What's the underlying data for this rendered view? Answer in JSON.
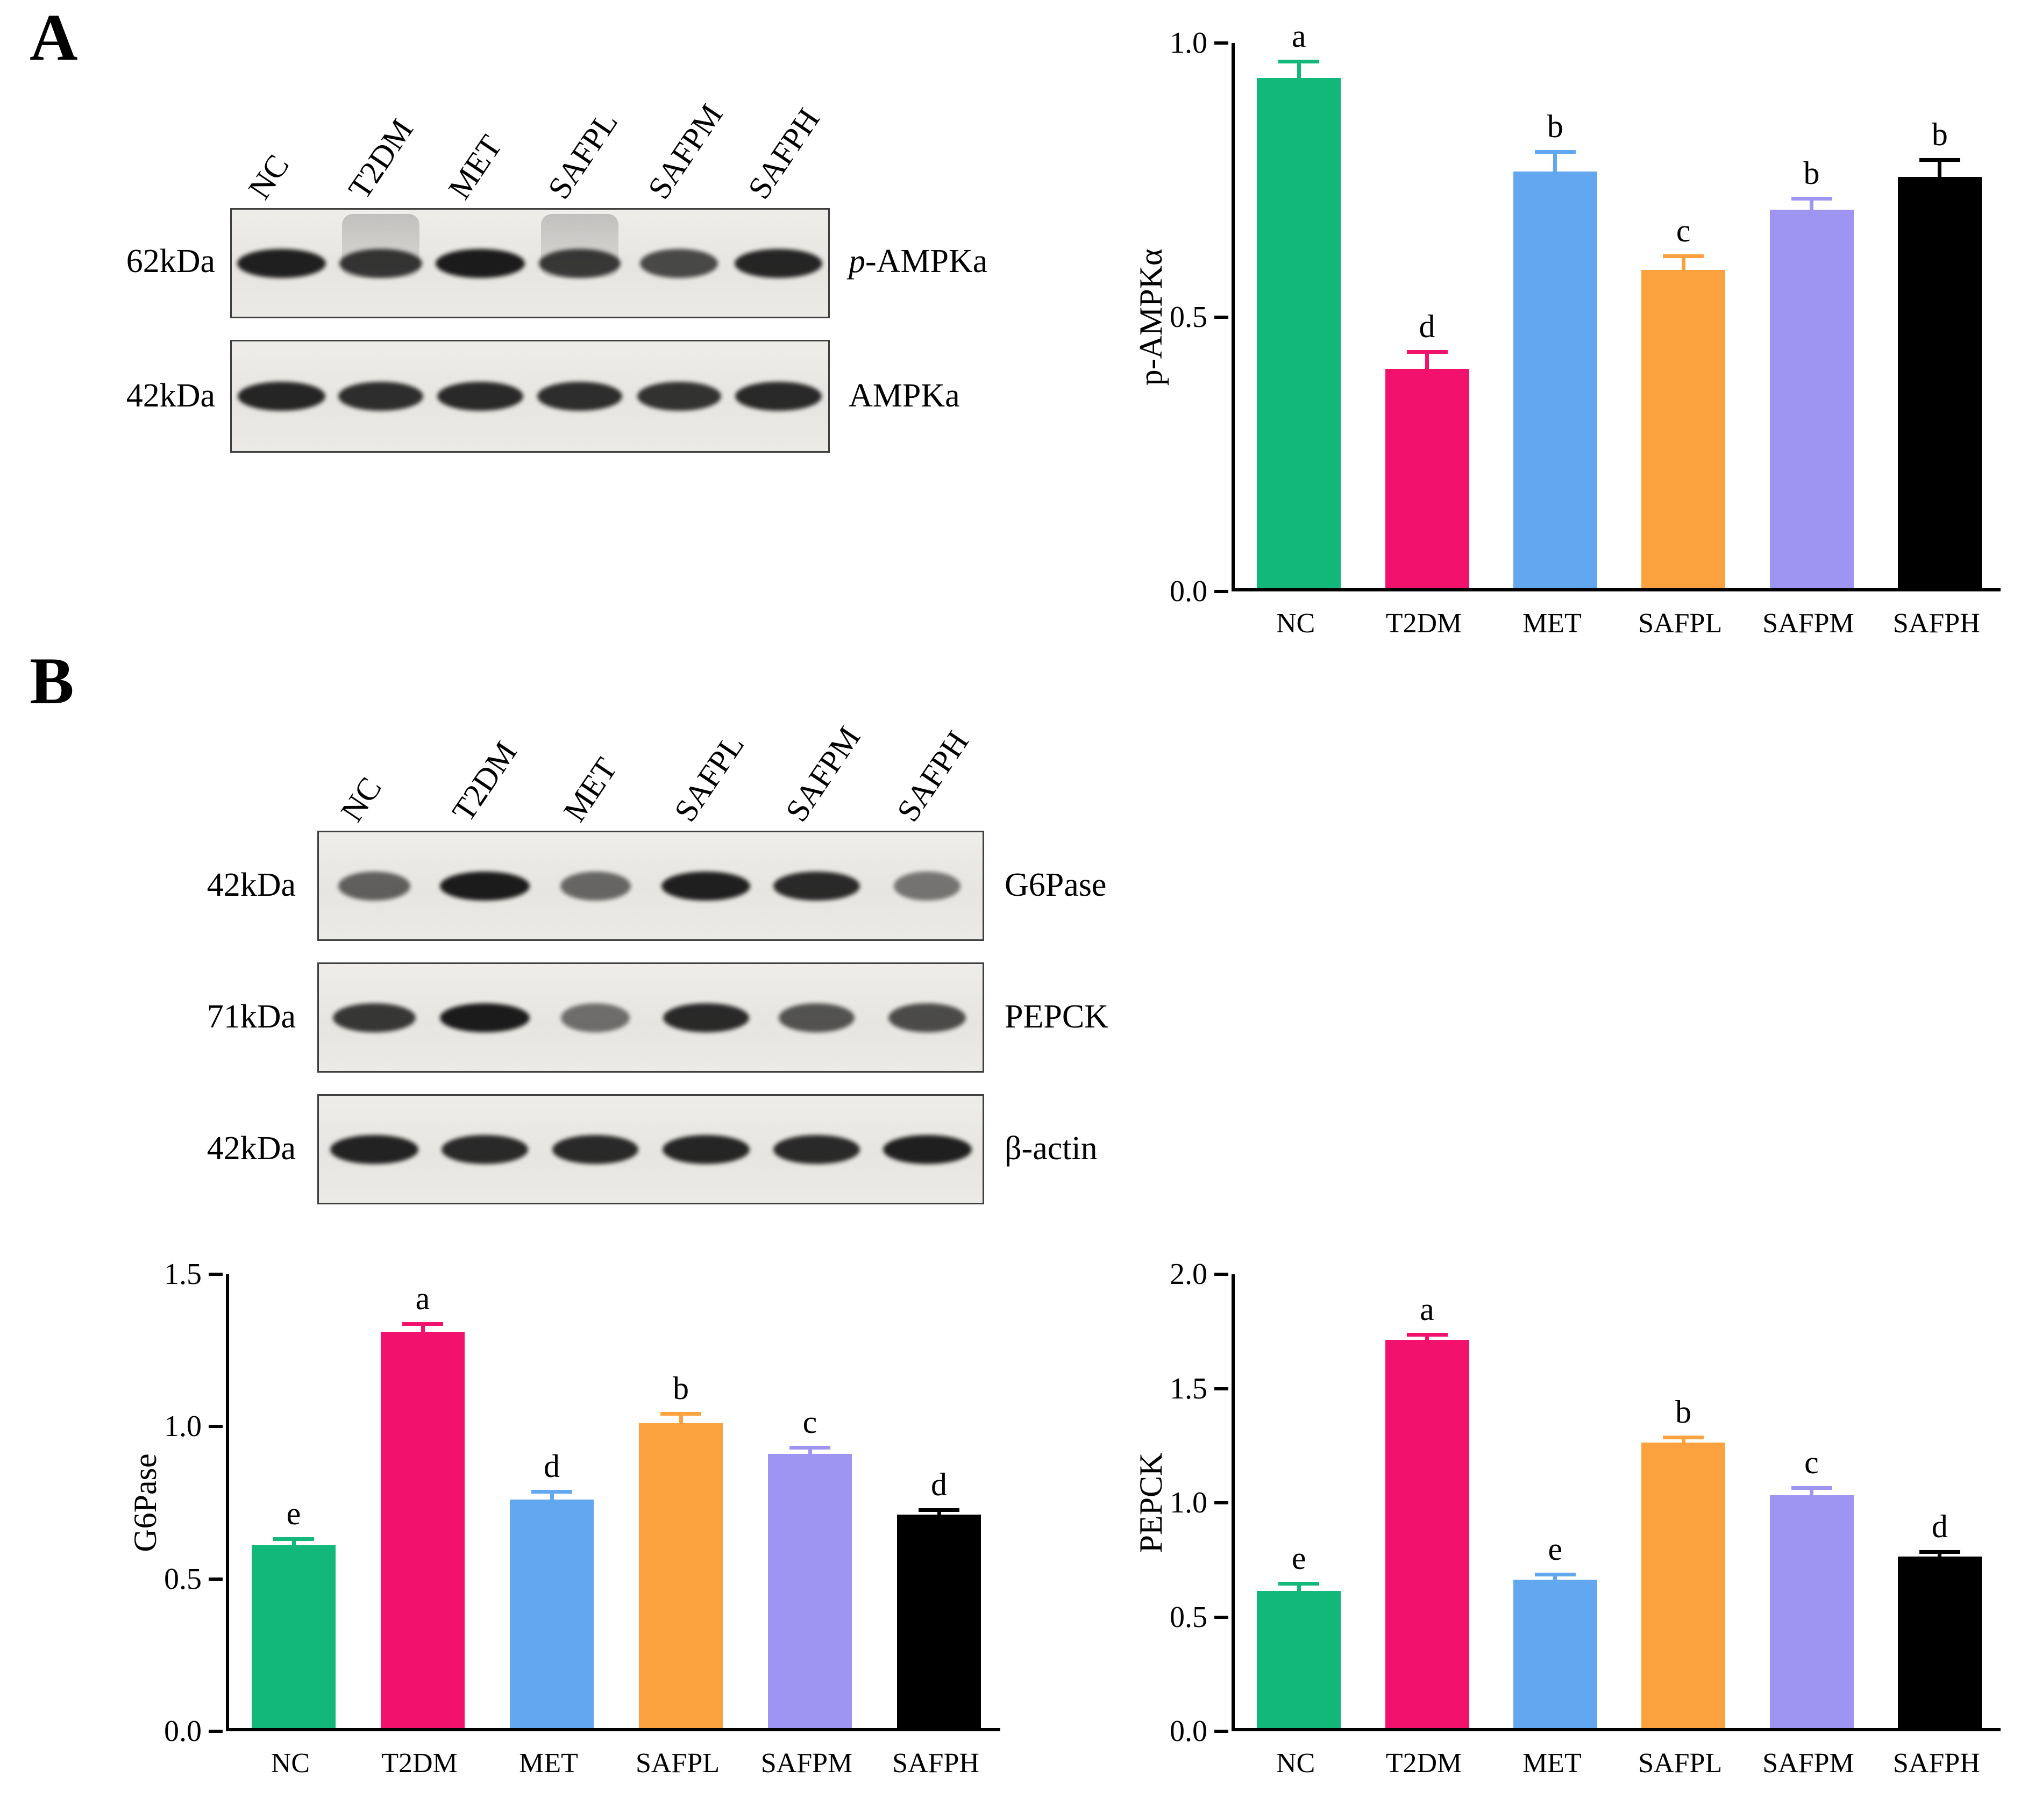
{
  "figure": {
    "panelA_label": "A",
    "panelB_label": "B"
  },
  "panelA_blot": {
    "lanes": [
      "NC",
      "T2DM",
      "MET",
      "SAFPL",
      "SAFPM",
      "SAFPH"
    ],
    "rows": [
      {
        "kda": "62kDa",
        "protein_prefix": "p",
        "protein": "-AMPKa",
        "bands": [
          0.92,
          0.75,
          0.95,
          0.72,
          0.62,
          0.88
        ],
        "smears": [
          0,
          1,
          0,
          1,
          0,
          0
        ]
      },
      {
        "kda": "42kDa",
        "protein_prefix": "",
        "protein": "AMPKa",
        "bands": [
          0.88,
          0.82,
          0.85,
          0.82,
          0.78,
          0.85
        ]
      }
    ]
  },
  "panelB_blot": {
    "lanes": [
      "NC",
      "T2DM",
      "MET",
      "SAFPL",
      "SAFPM",
      "SAFPH"
    ],
    "rows": [
      {
        "kda": "42kDa",
        "protein_prefix": "",
        "protein": "G6Pase",
        "bands": [
          0.45,
          0.95,
          0.4,
          0.92,
          0.85,
          0.3
        ]
      },
      {
        "kda": "71kDa",
        "protein_prefix": "",
        "protein": "PEPCK",
        "bands": [
          0.75,
          0.95,
          0.35,
          0.85,
          0.55,
          0.6
        ]
      },
      {
        "kda": "42kDa",
        "protein_prefix": "",
        "protein": "β-actin",
        "bands": [
          0.9,
          0.85,
          0.85,
          0.88,
          0.85,
          0.92
        ]
      }
    ]
  },
  "chart_data": [
    {
      "type": "bar",
      "title": "",
      "ylabel": "p-AMPKα",
      "xlabel": "",
      "categories": [
        "NC",
        "T2DM",
        "MET",
        "SAFPL",
        "SAFPM",
        "SAFPH"
      ],
      "values": [
        0.93,
        0.4,
        0.76,
        0.58,
        0.69,
        0.75
      ],
      "errors": [
        0.03,
        0.03,
        0.035,
        0.025,
        0.02,
        0.03
      ],
      "sig_letters": [
        "a",
        "d",
        "b",
        "c",
        "b",
        "b"
      ],
      "colors": [
        "#12b879",
        "#f2126d",
        "#61a8f1",
        "#fba23f",
        "#9e94f2",
        "#000000"
      ],
      "ylim": [
        0,
        1.0
      ],
      "yticks": [
        0,
        0.5,
        1.0
      ],
      "ytick_labels": [
        "0.0",
        "0.5",
        "1.0"
      ],
      "grid": false,
      "legend": "none"
    },
    {
      "type": "bar",
      "title": "",
      "ylabel": "G6Pase",
      "xlabel": "",
      "categories": [
        "NC",
        "T2DM",
        "MET",
        "SAFPL",
        "SAFPM",
        "SAFPH"
      ],
      "values": [
        0.6,
        1.3,
        0.75,
        1.0,
        0.9,
        0.7
      ],
      "errors": [
        0.02,
        0.025,
        0.025,
        0.03,
        0.02,
        0.015
      ],
      "sig_letters": [
        "e",
        "a",
        "d",
        "b",
        "c",
        "d"
      ],
      "colors": [
        "#12b879",
        "#f2126d",
        "#61a8f1",
        "#fba23f",
        "#9e94f2",
        "#000000"
      ],
      "ylim": [
        0,
        1.5
      ],
      "yticks": [
        0,
        0.5,
        1.0,
        1.5
      ],
      "ytick_labels": [
        "0.0",
        "0.5",
        "1.0",
        "1.5"
      ],
      "grid": false,
      "legend": "none"
    },
    {
      "type": "bar",
      "title": "",
      "ylabel": "PEPCK",
      "xlabel": "",
      "categories": [
        "NC",
        "T2DM",
        "MET",
        "SAFPL",
        "SAFPM",
        "SAFPH"
      ],
      "values": [
        0.6,
        1.7,
        0.65,
        1.25,
        1.02,
        0.75
      ],
      "errors": [
        0.03,
        0.02,
        0.02,
        0.02,
        0.03,
        0.02
      ],
      "sig_letters": [
        "e",
        "a",
        "e",
        "b",
        "c",
        "d"
      ],
      "colors": [
        "#12b879",
        "#f2126d",
        "#61a8f1",
        "#fba23f",
        "#9e94f2",
        "#000000"
      ],
      "ylim": [
        0,
        2.0
      ],
      "yticks": [
        0,
        0.5,
        1.0,
        1.5,
        2.0
      ],
      "ytick_labels": [
        "0.0",
        "0.5",
        "1.0",
        "1.5",
        "2.0"
      ],
      "grid": false,
      "legend": "none"
    }
  ]
}
